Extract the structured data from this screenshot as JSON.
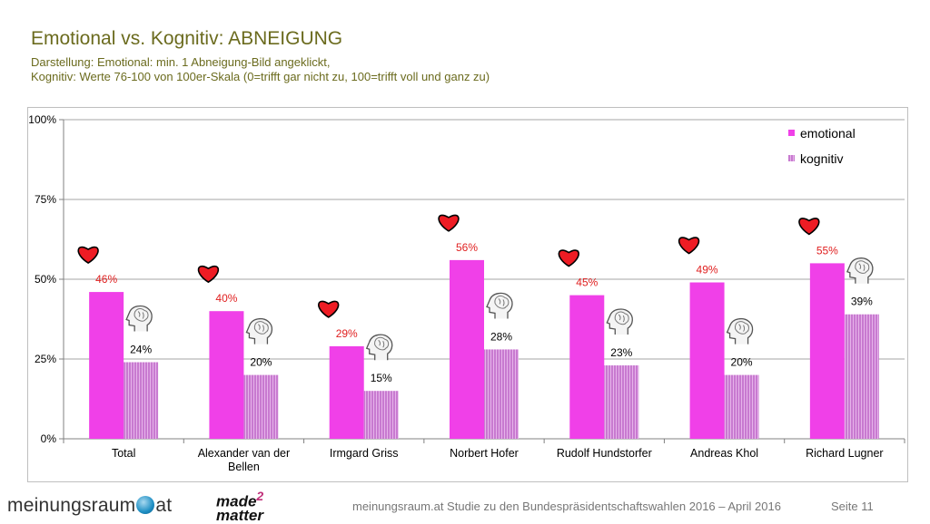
{
  "slide": {
    "title": "Emotional vs. Kognitiv: ABNEIGUNG",
    "subtitle_line1": "Darstellung: Emotional: min. 1 Abneigung-Bild angeklickt,",
    "subtitle_line2": "Kognitiv: Werte 76-100 von 100er-Skala (0=trifft gar nicht zu, 100=trifft voll und ganz zu)"
  },
  "chart_data": {
    "type": "bar",
    "title": "",
    "xlabel": "",
    "ylabel": "",
    "ylim": [
      0,
      100
    ],
    "yticks": [
      0,
      25,
      50,
      75,
      100
    ],
    "ytick_labels": [
      "0%",
      "25%",
      "50%",
      "75%",
      "100%"
    ],
    "grid": true,
    "legend_position": "top-right",
    "categories": [
      [
        "Total"
      ],
      [
        "Alexander van der",
        "Bellen"
      ],
      [
        "Irmgard Griss"
      ],
      [
        "Norbert Hofer"
      ],
      [
        "Rudolf Hundstorfer"
      ],
      [
        "Andreas Khol"
      ],
      [
        "Richard Lugner"
      ]
    ],
    "series": [
      {
        "name": "emotional",
        "values": [
          46,
          40,
          29,
          56,
          45,
          49,
          55
        ],
        "labels": [
          "46%",
          "40%",
          "29%",
          "56%",
          "45%",
          "49%",
          "55%"
        ],
        "color": "#f040e8",
        "label_color": "#e02020",
        "icon": "heart-icon"
      },
      {
        "name": "kognitiv",
        "values": [
          24,
          20,
          15,
          28,
          23,
          20,
          39
        ],
        "labels": [
          "24%",
          "20%",
          "15%",
          "28%",
          "23%",
          "20%",
          "39%"
        ],
        "color": "#c87ad0",
        "label_color": "#000000",
        "icon": "head-brain-icon"
      }
    ]
  },
  "footer": {
    "logo1_left": "meinungsraum",
    "logo1_right": "at",
    "logo2_top": "made",
    "logo2_num": "2",
    "logo2_bottom": "matter",
    "study_text": "meinungsraum.at Studie zu den Bundespräsidentschaftswahlen 2016 – April 2016",
    "page_label": "Seite 11"
  }
}
